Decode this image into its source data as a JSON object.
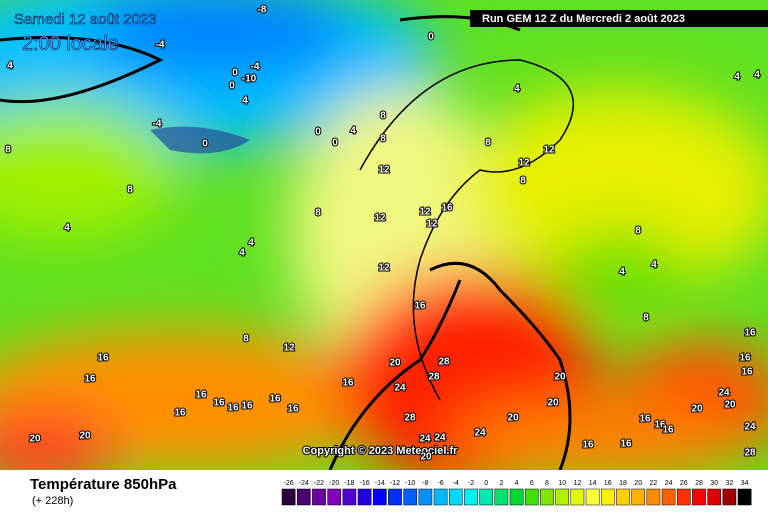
{
  "header": {
    "date": "Samedi 12 août 2023",
    "time": "2:00 locale",
    "run": "Run GEM 12 Z du Mercredi 2 août 2023"
  },
  "copyright": "Copyright © 2023 Meteociel.fr",
  "footer": {
    "title": "Température 850hPa",
    "lead": "(+ 228h)"
  },
  "colorbar": {
    "values": [
      -26,
      -24,
      -22,
      -20,
      -18,
      -16,
      -14,
      -12,
      -10,
      -8,
      -6,
      -4,
      -2,
      0,
      2,
      4,
      6,
      8,
      10,
      12,
      14,
      16,
      18,
      20,
      22,
      24,
      26,
      28,
      30,
      32,
      34
    ],
    "colors": [
      "#2d0040",
      "#4b0070",
      "#6a00a0",
      "#8000c0",
      "#5000d0",
      "#2000e0",
      "#0000ff",
      "#0030ff",
      "#0060ff",
      "#0090ff",
      "#00b8ff",
      "#00d8ff",
      "#00f0f0",
      "#00e8b0",
      "#00e070",
      "#00d830",
      "#40e000",
      "#80e800",
      "#b0f000",
      "#e0f800",
      "#ffff40",
      "#fff000",
      "#ffd000",
      "#ffb000",
      "#ff8c00",
      "#ff6000",
      "#ff3000",
      "#ff0000",
      "#d80000",
      "#a00000",
      "#000000"
    ]
  },
  "map": {
    "contour_labels": [
      -8,
      -4,
      4,
      8,
      0,
      -4,
      0,
      -10,
      0,
      4,
      -4,
      0,
      0,
      4,
      0,
      8,
      8,
      4,
      4,
      4,
      8,
      12,
      12,
      12,
      8,
      8,
      4,
      8,
      12,
      12,
      16,
      12,
      8,
      4,
      4,
      12,
      4,
      4,
      8,
      16,
      8,
      12,
      16,
      16,
      16,
      16,
      16,
      20,
      28,
      28,
      20,
      16,
      24,
      24,
      20,
      20,
      16,
      16,
      16,
      16,
      16,
      16,
      16,
      28,
      20,
      20,
      16,
      16,
      16,
      24,
      20,
      20,
      24,
      24,
      24,
      16,
      16,
      28,
      20
    ]
  }
}
